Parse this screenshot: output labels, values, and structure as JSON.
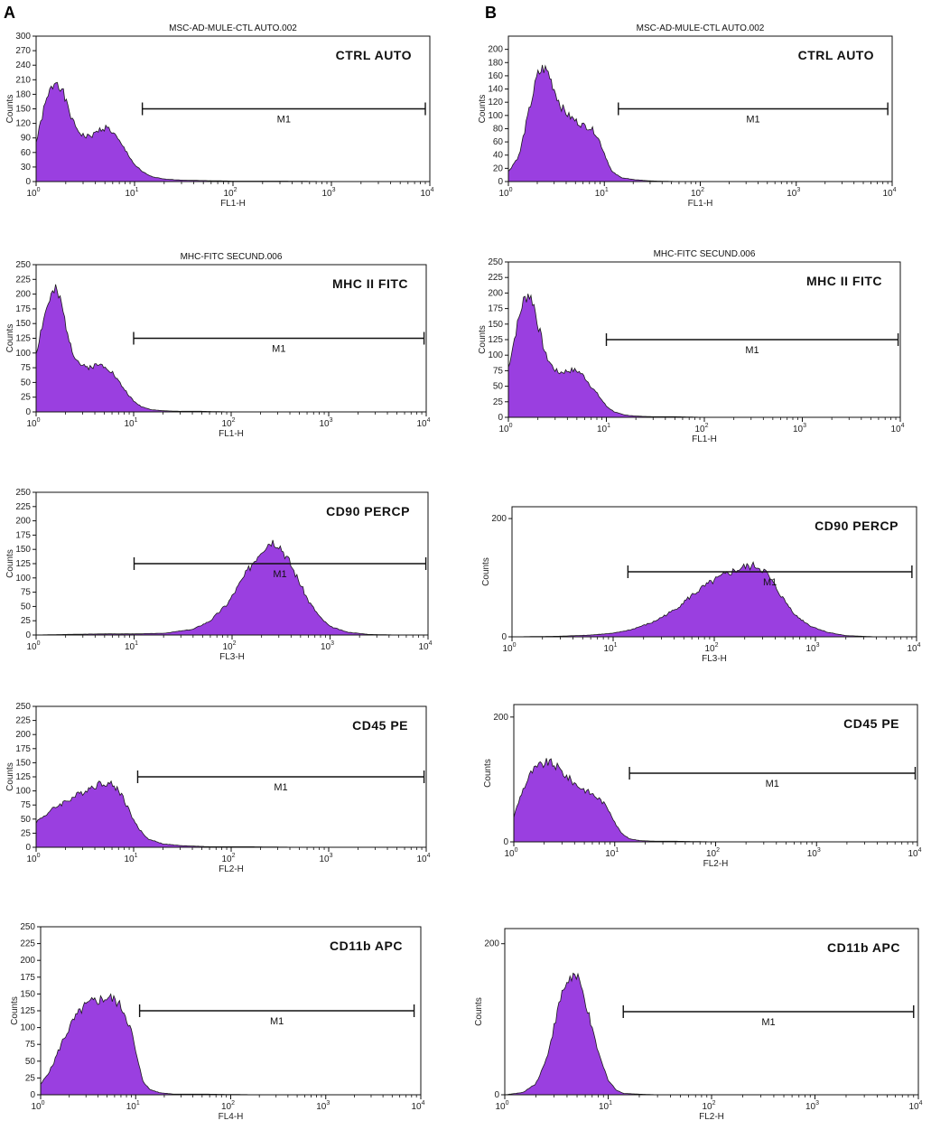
{
  "panels": [
    {
      "letter": "A"
    },
    {
      "letter": "B"
    }
  ],
  "colors": {
    "fill": "#9a3fe0",
    "stroke": "#1a1a1a",
    "frame": "#111111"
  },
  "chart_data": [
    {
      "type": "area",
      "panel": "A",
      "title": "MSC-AD-MULE-CTL AUTO.002",
      "marker": "CTRL AUTO",
      "xlabel": "FL1-H",
      "ylabel": "Counts",
      "xscale": "log",
      "xlim": [
        1,
        10000
      ],
      "ylim": [
        0,
        300
      ],
      "yticks": [
        0,
        30,
        60,
        90,
        120,
        150,
        180,
        210,
        240,
        270,
        300
      ],
      "ytick_labels": [
        "0",
        "30",
        "60",
        "90",
        "120",
        "150",
        "180",
        "210",
        "240",
        "270",
        "300"
      ],
      "xticks": [
        1,
        10,
        100,
        1000,
        10000
      ],
      "gate": {
        "label": "M1",
        "start": 12,
        "end": 9000
      },
      "x": [
        1,
        1.2,
        1.4,
        1.6,
        1.8,
        2.0,
        2.4,
        2.8,
        3.2,
        3.8,
        4.5,
        5.2,
        6,
        7,
        8.5,
        10,
        12,
        15,
        20,
        30,
        50,
        100,
        300,
        1000,
        10000
      ],
      "y": [
        80,
        150,
        190,
        210,
        195,
        165,
        120,
        100,
        92,
        96,
        108,
        112,
        102,
        82,
        58,
        35,
        20,
        10,
        5,
        3,
        2,
        1,
        1,
        0,
        0
      ]
    },
    {
      "type": "area",
      "panel": "A",
      "title": "MHC-FITC SECUND.006",
      "marker": "MHC II  FITC",
      "xlabel": "FL1-H",
      "ylabel": "Counts",
      "xscale": "log",
      "xlim": [
        1,
        10000
      ],
      "ylim": [
        0,
        250
      ],
      "yticks": [
        0,
        25,
        50,
        75,
        100,
        125,
        150,
        175,
        200,
        225,
        250
      ],
      "ytick_labels": [
        "0",
        "25",
        "50",
        "75",
        "100",
        "125",
        "150",
        "175",
        "200",
        "225",
        "250"
      ],
      "xticks": [
        1,
        10,
        100,
        1000,
        10000
      ],
      "gate": {
        "label": "M1",
        "start": 10,
        "end": 9500
      },
      "x": [
        1,
        1.2,
        1.4,
        1.6,
        1.8,
        2.0,
        2.4,
        2.8,
        3.2,
        3.8,
        4.5,
        5.2,
        6,
        7,
        8.5,
        10,
        12,
        15,
        20,
        30,
        50,
        100,
        300,
        1000,
        10000
      ],
      "y": [
        100,
        160,
        195,
        205,
        185,
        150,
        100,
        82,
        75,
        78,
        80,
        78,
        68,
        52,
        33,
        18,
        9,
        4,
        2,
        1,
        1,
        0,
        0,
        0,
        0
      ]
    },
    {
      "type": "area",
      "panel": "A",
      "title": "",
      "marker": "CD90 PERCP",
      "xlabel": "FL3-H",
      "ylabel": "Counts",
      "xscale": "log",
      "xlim": [
        1,
        10000
      ],
      "ylim": [
        0,
        250
      ],
      "yticks": [
        0,
        25,
        50,
        75,
        100,
        125,
        150,
        175,
        200,
        225,
        250
      ],
      "ytick_labels": [
        "0",
        "25",
        "50",
        "75",
        "100",
        "125",
        "150",
        "175",
        "200",
        "225",
        "250"
      ],
      "xticks": [
        1,
        10,
        100,
        1000,
        10000
      ],
      "gate": {
        "label": "M1",
        "start": 10,
        "end": 9500
      },
      "x": [
        1,
        2,
        5,
        10,
        20,
        40,
        60,
        90,
        120,
        160,
        200,
        250,
        300,
        380,
        480,
        600,
        800,
        1000,
        1500,
        2500,
        5000,
        10000
      ],
      "y": [
        0,
        1,
        2,
        2,
        3,
        10,
        25,
        55,
        90,
        125,
        150,
        165,
        160,
        130,
        95,
        60,
        30,
        15,
        5,
        1,
        0,
        0
      ]
    },
    {
      "type": "area",
      "panel": "A",
      "title": "",
      "marker": "CD45 PE",
      "xlabel": "FL2-H",
      "ylabel": "Counts",
      "xscale": "log",
      "xlim": [
        1,
        10000
      ],
      "ylim": [
        0,
        250
      ],
      "yticks": [
        0,
        25,
        50,
        75,
        100,
        125,
        150,
        175,
        200,
        225,
        250
      ],
      "ytick_labels": [
        "0",
        "25",
        "50",
        "75",
        "100",
        "125",
        "150",
        "175",
        "200",
        "225",
        "250"
      ],
      "xticks": [
        1,
        10,
        100,
        1000,
        10000
      ],
      "gate": {
        "label": "M1",
        "start": 11,
        "end": 9500
      },
      "x": [
        1,
        1.3,
        1.7,
        2.2,
        2.8,
        3.5,
        4.3,
        5.2,
        6.2,
        7.5,
        9,
        11,
        14,
        20,
        30,
        60,
        150,
        500,
        10000
      ],
      "y": [
        45,
        60,
        75,
        85,
        95,
        105,
        112,
        115,
        110,
        95,
        65,
        35,
        15,
        6,
        3,
        1,
        1,
        0,
        0
      ]
    },
    {
      "type": "area",
      "panel": "A",
      "title": "",
      "marker": "CD11b APC",
      "xlabel": "FL4-H",
      "ylabel": "Counts",
      "xscale": "log",
      "xlim": [
        1,
        10000
      ],
      "ylim": [
        0,
        250
      ],
      "yticks": [
        0,
        25,
        50,
        75,
        100,
        125,
        150,
        175,
        200,
        225,
        250
      ],
      "ytick_labels": [
        "0",
        "25",
        "50",
        "75",
        "100",
        "125",
        "150",
        "175",
        "200",
        "225",
        "250"
      ],
      "xticks": [
        1,
        10,
        100,
        1000,
        10000
      ],
      "gate": {
        "label": "M1",
        "start": 11,
        "end": 8500
      },
      "x": [
        1,
        1.3,
        1.7,
        2.2,
        2.8,
        3.5,
        4.3,
        5.2,
        6.2,
        7.5,
        9,
        10.5,
        12,
        14,
        18,
        25,
        50,
        200,
        10000
      ],
      "y": [
        15,
        40,
        80,
        110,
        130,
        138,
        142,
        145,
        140,
        125,
        95,
        50,
        20,
        8,
        3,
        1,
        1,
        0,
        0
      ]
    },
    {
      "type": "area",
      "panel": "B",
      "title": "MSC-AD-MULE-CTL AUTO.002",
      "marker": "CTRL AUTO",
      "xlabel": "FL1-H",
      "ylabel": "Counts",
      "xscale": "log",
      "xlim": [
        1,
        10000
      ],
      "ylim": [
        0,
        220
      ],
      "yticks": [
        0,
        20,
        40,
        60,
        80,
        100,
        120,
        140,
        160,
        180,
        200
      ],
      "ytick_labels": [
        "0",
        "20",
        "40",
        "60",
        "80",
        "100",
        "120",
        "140",
        "160",
        "180",
        "200"
      ],
      "xticks": [
        1,
        10,
        100,
        1000,
        10000
      ],
      "gate": {
        "label": "M1",
        "start": 14,
        "end": 9000
      },
      "x": [
        1,
        1.3,
        1.6,
        2.0,
        2.3,
        2.6,
        3.0,
        3.5,
        4.2,
        5,
        6,
        7,
        8,
        9,
        10.5,
        12,
        15,
        20,
        30,
        60,
        200,
        10000
      ],
      "y": [
        15,
        40,
        100,
        160,
        172,
        165,
        140,
        115,
        100,
        92,
        85,
        82,
        75,
        60,
        35,
        15,
        6,
        3,
        1,
        0,
        0,
        0
      ]
    },
    {
      "type": "area",
      "panel": "B",
      "title": "MHC-FITC SECUND.006",
      "marker": "MHC II  FITC",
      "xlabel": "FL1-H",
      "ylabel": "Counts",
      "xscale": "log",
      "xlim": [
        1,
        10000
      ],
      "ylim": [
        0,
        250
      ],
      "yticks": [
        0,
        25,
        50,
        75,
        100,
        125,
        150,
        175,
        200,
        225,
        250
      ],
      "ytick_labels": [
        "0",
        "25",
        "50",
        "75",
        "100",
        "125",
        "150",
        "175",
        "200",
        "225",
        "250"
      ],
      "xticks": [
        1,
        10,
        100,
        1000,
        10000
      ],
      "gate": {
        "label": "M1",
        "start": 10,
        "end": 9500
      },
      "x": [
        1,
        1.2,
        1.4,
        1.6,
        1.8,
        2.0,
        2.4,
        2.8,
        3.2,
        3.8,
        4.5,
        5.2,
        6,
        7,
        8.5,
        10,
        12,
        15,
        20,
        30,
        50,
        100,
        300,
        1000,
        10000
      ],
      "y": [
        80,
        140,
        185,
        200,
        185,
        150,
        100,
        82,
        72,
        74,
        76,
        74,
        65,
        50,
        33,
        18,
        9,
        4,
        2,
        1,
        1,
        0,
        0,
        0,
        0
      ]
    },
    {
      "type": "area",
      "panel": "B",
      "title": "",
      "marker": "CD90 PERCP",
      "xlabel": "FL3-H",
      "ylabel": "Counts",
      "xscale": "log",
      "xlim": [
        1,
        10000
      ],
      "ylim": [
        0,
        220
      ],
      "yticks": [
        0,
        200
      ],
      "ytick_labels": [
        "0",
        "200"
      ],
      "xticks": [
        1,
        10,
        100,
        1000,
        10000
      ],
      "gate": {
        "label": "M1",
        "start": 14,
        "end": 9000
      },
      "x": [
        1,
        3,
        6,
        10,
        15,
        25,
        40,
        60,
        80,
        100,
        140,
        200,
        260,
        320,
        400,
        500,
        650,
        900,
        1300,
        2000,
        4000,
        10000
      ],
      "y": [
        0,
        1,
        3,
        6,
        12,
        25,
        45,
        70,
        85,
        95,
        108,
        118,
        120,
        110,
        85,
        60,
        35,
        18,
        8,
        2,
        0,
        0
      ]
    },
    {
      "type": "area",
      "panel": "B",
      "title": "",
      "marker": "CD45 PE",
      "xlabel": "FL2-H",
      "ylabel": "Counts",
      "xscale": "log",
      "xlim": [
        1,
        10000
      ],
      "ylim": [
        0,
        220
      ],
      "yticks": [
        0,
        200
      ],
      "ytick_labels": [
        "0",
        "200"
      ],
      "xticks": [
        1,
        10,
        100,
        1000,
        10000
      ],
      "gate": {
        "label": "M1",
        "start": 14,
        "end": 9500
      },
      "x": [
        1,
        1.2,
        1.5,
        1.8,
        2.2,
        2.6,
        3.0,
        3.6,
        4.3,
        5.2,
        6.2,
        7.5,
        9,
        10.5,
        12,
        14,
        18,
        25,
        40,
        100,
        500,
        10000
      ],
      "y": [
        40,
        80,
        112,
        122,
        128,
        122,
        112,
        100,
        90,
        82,
        75,
        65,
        48,
        25,
        12,
        5,
        2,
        1,
        1,
        0,
        0,
        0
      ]
    },
    {
      "type": "area",
      "panel": "B",
      "title": "",
      "marker": "CD11b APC",
      "xlabel": "FL2-H",
      "ylabel": "Counts",
      "xscale": "log",
      "xlim": [
        1,
        10000
      ],
      "ylim": [
        0,
        220
      ],
      "yticks": [
        0,
        200
      ],
      "ytick_labels": [
        "0",
        "200"
      ],
      "xticks": [
        1,
        10,
        100,
        1000,
        10000
      ],
      "gate": {
        "label": "M1",
        "start": 14,
        "end": 9000
      },
      "x": [
        1,
        1.5,
        2,
        2.5,
        3,
        3.5,
        4,
        4.6,
        5.2,
        6,
        7,
        8.5,
        10,
        12,
        14,
        18,
        30,
        100,
        10000
      ],
      "y": [
        0,
        3,
        15,
        45,
        90,
        130,
        150,
        158,
        150,
        125,
        85,
        45,
        20,
        6,
        2,
        1,
        0,
        0,
        0
      ]
    }
  ]
}
